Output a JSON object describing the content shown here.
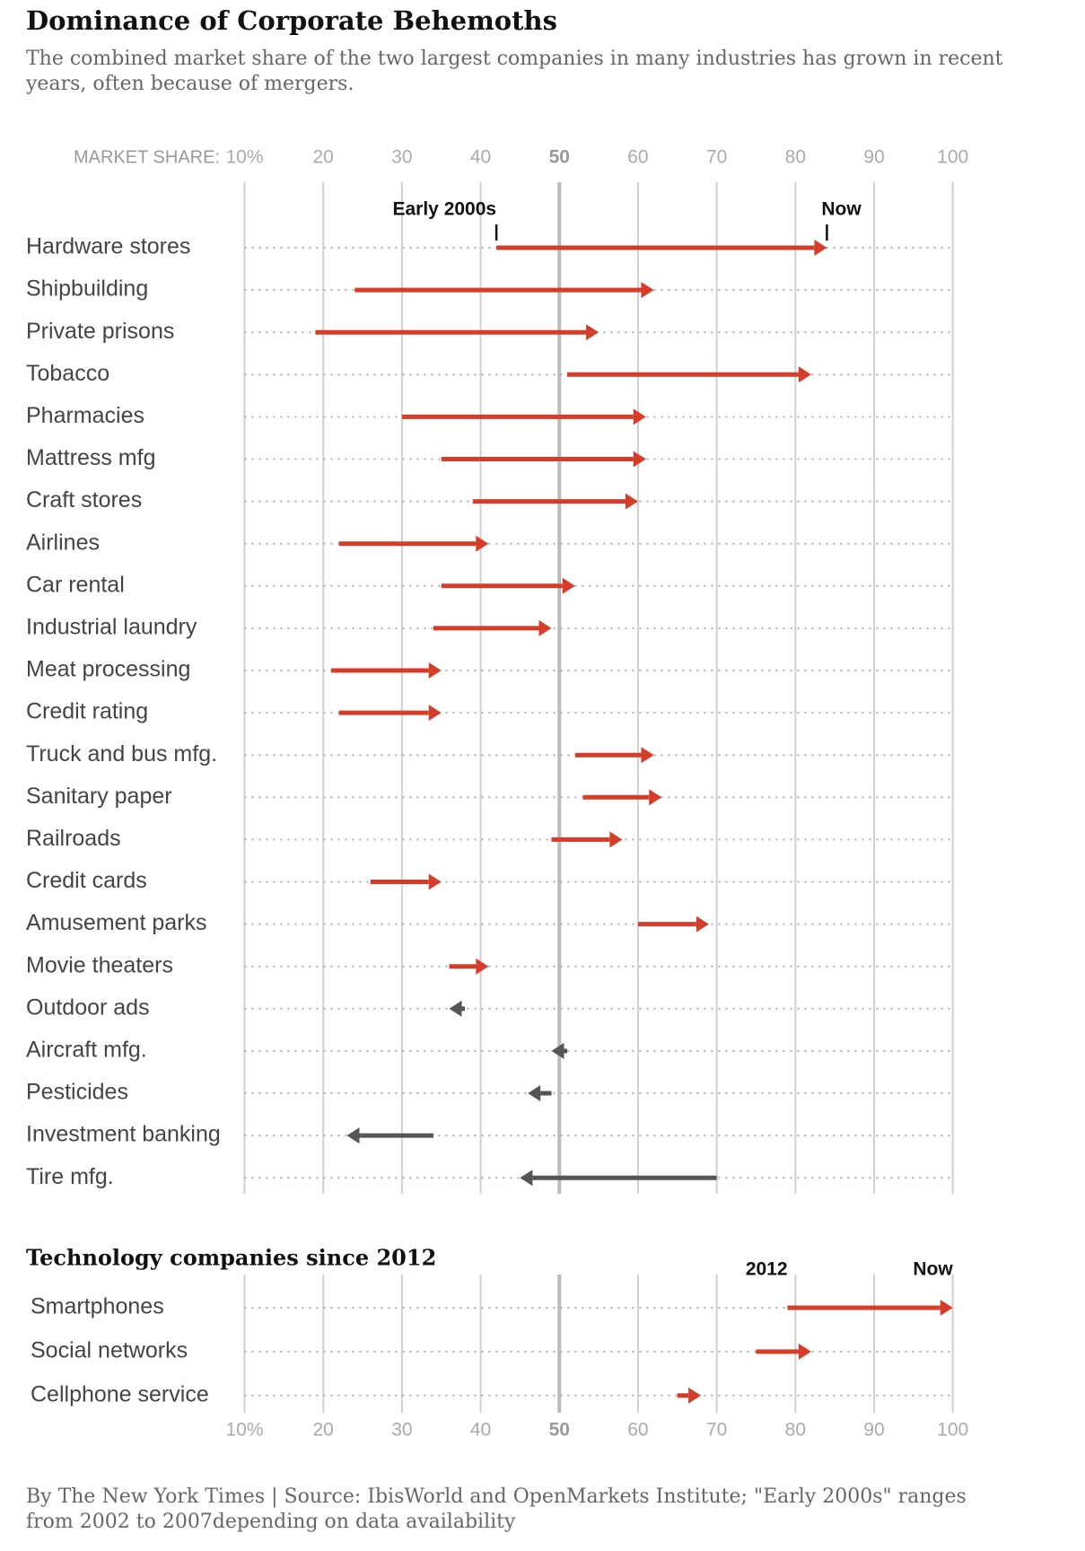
{
  "title": "Dominance of Corporate Behemoths",
  "subtitle": "The combined market share of the two largest companies in many industries has grown in recent years, often because of mergers.",
  "source": "By The New York Times | Source: IbisWorld and OpenMarkets Institute; \"Early 2000s\" ranges from 2002 to 2007depending on data availability",
  "chart_data": [
    {
      "type": "arrow",
      "axis_label": "MARKET SHARE:",
      "categories": [
        "Hardware stores",
        "Shipbuilding",
        "Private prisons",
        "Tobacco",
        "Pharmacies",
        "Mattress mfg",
        "Craft stores",
        "Airlines",
        "Car rental",
        "Industrial laundry",
        "Meat processing",
        "Credit rating",
        "Truck and bus mfg.",
        "Sanitary paper",
        "Railroads",
        "Credit cards",
        "Amusement parks",
        "Movie theaters",
        "Outdoor ads",
        "Aircraft mfg.",
        "Pesticides",
        "Investment banking",
        "Tire mfg."
      ],
      "series": [
        {
          "name": "Early 2000s",
          "values": [
            42,
            24,
            19,
            51,
            30,
            35,
            39,
            22,
            35,
            34,
            21,
            22,
            52,
            53,
            49,
            26,
            60,
            36,
            38,
            51,
            49,
            34,
            70
          ]
        },
        {
          "name": "Now",
          "values": [
            84,
            62,
            55,
            82,
            61,
            61,
            60,
            41,
            52,
            49,
            35,
            35,
            62,
            63,
            58,
            35,
            69,
            41,
            36,
            49,
            46,
            23,
            45
          ]
        }
      ],
      "increase_color": "#d63c2a",
      "decrease_color": "#555555",
      "xlim": [
        10,
        100
      ],
      "xticks": [
        {
          "value": 10,
          "label": "10%"
        },
        20,
        30,
        40,
        50,
        60,
        70,
        80,
        90,
        100
      ],
      "highlight_xtick": 50,
      "grid": true,
      "xticks_position": "top"
    },
    {
      "type": "arrow",
      "title": "Technology companies since 2012",
      "categories": [
        "Smartphones",
        "Social networks",
        "Cellphone service"
      ],
      "series": [
        {
          "name": "2012",
          "values": [
            79,
            75,
            65
          ]
        },
        {
          "name": "Now",
          "values": [
            100,
            82,
            68
          ]
        }
      ],
      "increase_color": "#d63c2a",
      "decrease_color": "#555555",
      "xlim": [
        10,
        100
      ],
      "xticks": [
        {
          "value": 10,
          "label": "10%"
        },
        20,
        30,
        40,
        50,
        60,
        70,
        80,
        90,
        100
      ],
      "highlight_xtick": 50,
      "grid": true,
      "xticks_position": "bottom"
    }
  ]
}
